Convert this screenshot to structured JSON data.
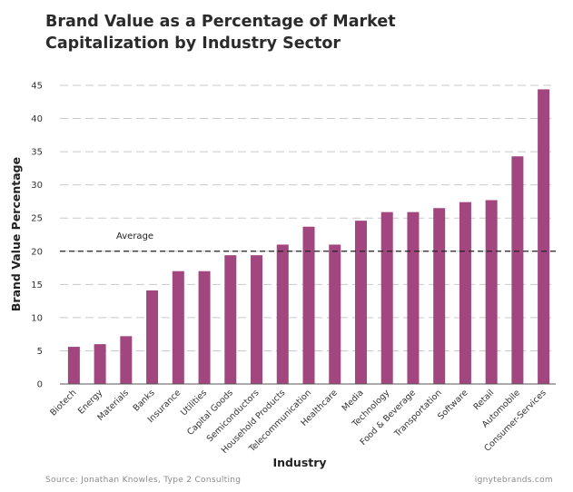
{
  "chart_data": {
    "type": "bar",
    "title_lines": [
      "Brand Value as a Percentage of Market",
      "Capitalization by Industry Sector"
    ],
    "xlabel": "Industry",
    "ylabel": "Brand Value Percentage",
    "ylim": [
      0,
      45
    ],
    "yticks": [
      0,
      5,
      10,
      15,
      20,
      25,
      30,
      35,
      40,
      45
    ],
    "grid": true,
    "categories": [
      "Biotech",
      "Energy",
      "Materials",
      "Banks",
      "Insurance",
      "Utilities",
      "Capital Goods",
      "Semiconductors",
      "Household Products",
      "Telecommunication",
      "Healthcare",
      "Media",
      "Technology",
      "Food & Beverage",
      "Transportation",
      "Software",
      "Retail",
      "Automobile",
      "Consumer-Services"
    ],
    "values": [
      5.6,
      6.0,
      7.2,
      14.1,
      17.0,
      17.0,
      19.4,
      19.4,
      21.0,
      23.7,
      21.0,
      24.6,
      25.9,
      25.9,
      26.5,
      27.4,
      27.7,
      34.3,
      44.4
    ],
    "average": {
      "label": "Average",
      "value": 20
    },
    "bar_color": "#a1467e"
  },
  "footer": {
    "source": "Source: Jonathan Knowles, Type 2 Consulting",
    "site": "ignytebrands.com"
  }
}
